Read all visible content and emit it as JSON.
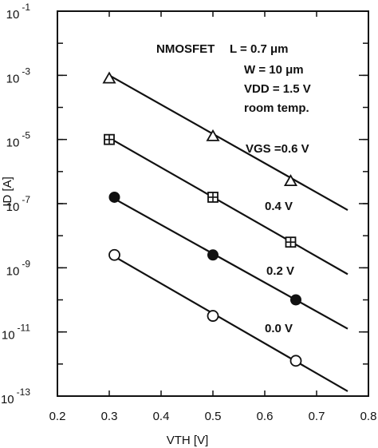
{
  "chart_data": {
    "type": "scatter",
    "title": "",
    "xlabel": "VTH [V]",
    "ylabel": "ID [A]",
    "xlim": [
      0.2,
      0.8
    ],
    "ylim_log10": [
      -13,
      -1
    ],
    "yscale": "log",
    "grid": false,
    "x_tick_labels": [
      "0.2",
      "0.3",
      "0.4",
      "0.5",
      "0.6",
      "0.7",
      "0.8"
    ],
    "x_tick_values": [
      0.2,
      0.3,
      0.4,
      0.5,
      0.6,
      0.7,
      0.8
    ],
    "y_tick_exponents": [
      -1,
      -3,
      -5,
      -7,
      -9,
      -11,
      -13
    ],
    "y_tick_base": "10",
    "annotations": {
      "device": "NMOSFET",
      "length": "L = 0.7 μm",
      "width": "W = 10 μm",
      "vdd": "VDD = 1.5 V",
      "temp": "room temp."
    },
    "series": [
      {
        "name": "VGS = 0.6 V",
        "label": "VGS =0.6 V",
        "marker": "triangle",
        "x": [
          0.3,
          0.5,
          0.65
        ],
        "y_log10": [
          -3.1,
          -4.9,
          -6.3
        ],
        "fit": {
          "x": [
            0.3,
            0.76
          ],
          "y_log10": [
            -3.0,
            -7.2
          ]
        }
      },
      {
        "name": "0.4 V",
        "label": "0.4 V",
        "marker": "boxed-plus",
        "x": [
          0.3,
          0.5,
          0.65
        ],
        "y_log10": [
          -5.0,
          -6.8,
          -8.2
        ],
        "fit": {
          "x": [
            0.3,
            0.76
          ],
          "y_log10": [
            -4.95,
            -9.2
          ]
        }
      },
      {
        "name": "0.2 V",
        "label": "0.2 V",
        "marker": "filled-circle",
        "x": [
          0.31,
          0.5,
          0.66
        ],
        "y_log10": [
          -6.8,
          -8.6,
          -10.0
        ],
        "fit": {
          "x": [
            0.31,
            0.76
          ],
          "y_log10": [
            -6.85,
            -10.9
          ]
        }
      },
      {
        "name": "0.0 V",
        "label": "0.0 V",
        "marker": "open-circle",
        "x": [
          0.31,
          0.5,
          0.66
        ],
        "y_log10": [
          -8.6,
          -10.5,
          -11.9
        ],
        "fit": {
          "x": [
            0.31,
            0.76
          ],
          "y_log10": [
            -8.65,
            -12.85
          ]
        }
      }
    ]
  }
}
